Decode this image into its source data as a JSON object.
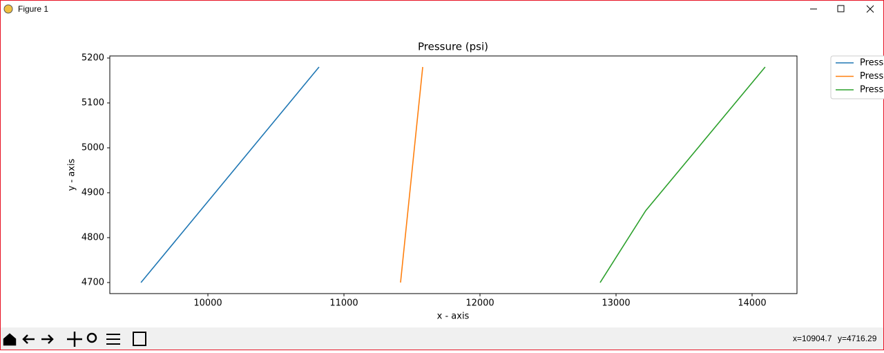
{
  "window": {
    "title": "Figure 1"
  },
  "status": {
    "x": "x=10904.7",
    "y": "y=4716.29"
  },
  "chart_data": {
    "type": "line",
    "title": "Pressure (psi)",
    "x_label": "x - axis",
    "y_label": "y - axis",
    "xlim": [
      9279,
      14330
    ],
    "ylim": [
      4675.4,
      5204.6
    ],
    "xticks": [
      10000,
      11000,
      12000,
      13000,
      14000
    ],
    "yticks": [
      4700,
      4800,
      4900,
      5000,
      5100,
      5200
    ],
    "legend": "upper right outside",
    "series": [
      {
        "name": "Press",
        "color": "#1f77b4",
        "x": [
          9508,
          10817
        ],
        "values": [
          4700,
          5180
        ]
      },
      {
        "name": "Press",
        "color": "#ff7f0e",
        "x": [
          11416,
          11579
        ],
        "values": [
          4700,
          5180
        ]
      },
      {
        "name": "Press",
        "color": "#2ca02c",
        "x": [
          12883,
          13218,
          14096
        ],
        "values": [
          4700,
          4860,
          5180
        ]
      }
    ]
  }
}
